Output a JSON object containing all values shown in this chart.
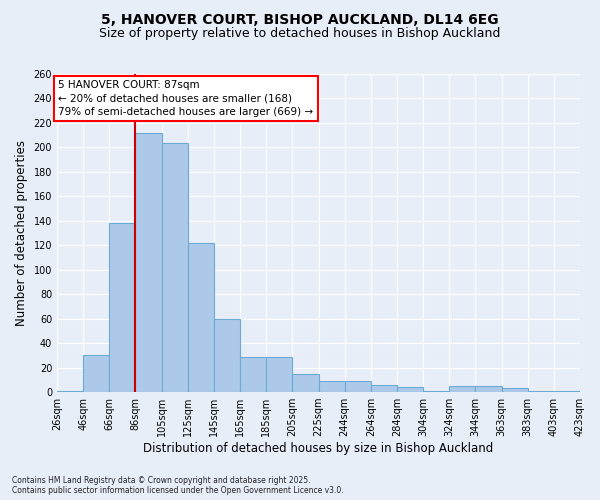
{
  "title1": "5, HANOVER COURT, BISHOP AUCKLAND, DL14 6EG",
  "title2": "Size of property relative to detached houses in Bishop Auckland",
  "xlabel": "Distribution of detached houses by size in Bishop Auckland",
  "ylabel": "Number of detached properties",
  "bar_values": [
    1,
    30,
    138,
    212,
    204,
    122,
    60,
    29,
    29,
    15,
    9,
    9,
    6,
    4,
    1,
    5,
    5,
    3,
    1,
    1
  ],
  "bin_labels": [
    "26sqm",
    "46sqm",
    "66sqm",
    "86sqm",
    "105sqm",
    "125sqm",
    "145sqm",
    "165sqm",
    "185sqm",
    "205sqm",
    "225sqm",
    "244sqm",
    "264sqm",
    "284sqm",
    "304sqm",
    "324sqm",
    "344sqm",
    "363sqm",
    "383sqm",
    "403sqm",
    "423sqm"
  ],
  "num_bins": 20,
  "bar_color": "#adc9ea",
  "bar_edge_color": "#6aaad4",
  "red_line_bin": 3,
  "annotation_text": "5 HANOVER COURT: 87sqm\n← 20% of detached houses are smaller (168)\n79% of semi-detached houses are larger (669) →",
  "red_line_color": "#cc0000",
  "ylim": [
    0,
    260
  ],
  "yticks": [
    0,
    20,
    40,
    60,
    80,
    100,
    120,
    140,
    160,
    180,
    200,
    220,
    240,
    260
  ],
  "bg_color": "#e8eef8",
  "grid_color": "#ffffff",
  "footer1": "Contains HM Land Registry data © Crown copyright and database right 2025.",
  "footer2": "Contains public sector information licensed under the Open Government Licence v3.0.",
  "title_fontsize": 10,
  "subtitle_fontsize": 9,
  "annot_fontsize": 7.5,
  "tick_fontsize": 7,
  "ylabel_fontsize": 8.5,
  "xlabel_fontsize": 8.5,
  "footer_fontsize": 5.5
}
